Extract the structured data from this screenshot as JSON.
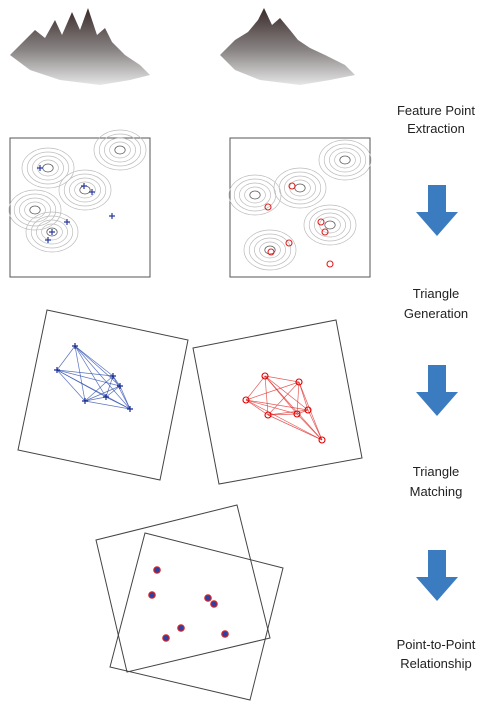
{
  "steps": [
    {
      "lines": [
        "Feature Point",
        "Extraction"
      ]
    },
    {
      "lines": [
        "Triangle",
        "Generation"
      ]
    },
    {
      "lines": [
        "Triangle",
        "Matching"
      ]
    },
    {
      "lines": [
        "Point-to-Point",
        "Relationship"
      ]
    }
  ]
}
